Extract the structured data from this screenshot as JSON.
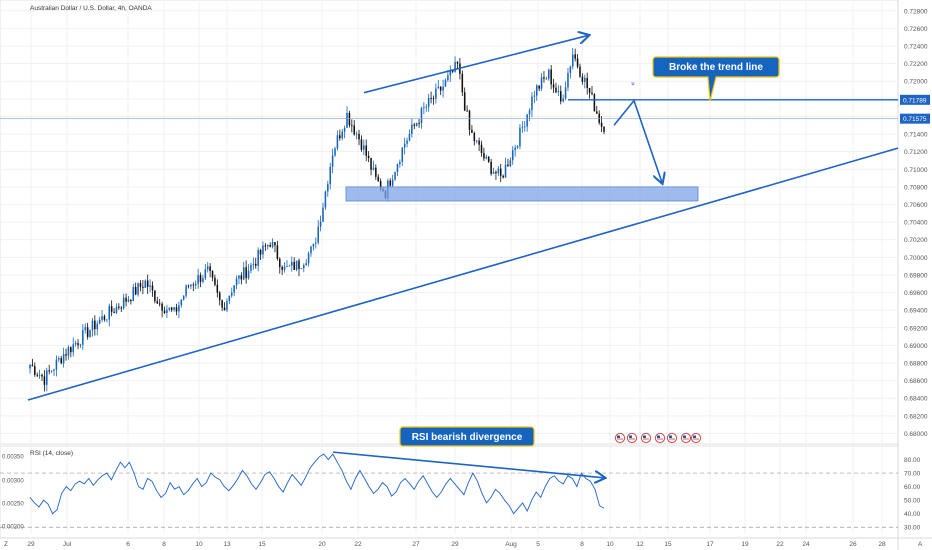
{
  "header": {
    "title": "Australian Dollar / U.S. Dollar, 4h, OANDA",
    "rsi_label": "RSI (14, close)"
  },
  "colors": {
    "bull": "#1565c0",
    "bear": "#111111",
    "accent": "#1e63c6",
    "zone": "#7fa3e6",
    "callout": "#1565c0",
    "grid": "#f1f1f1",
    "axis_text": "#555555"
  },
  "annotations": {
    "callout_trend": "Broke the trend line",
    "callout_rsi": "RSI bearish divergence"
  },
  "price_labels": {
    "level_tag": "0.71789",
    "last_tag": "0.71575"
  },
  "axis": {
    "zoom_left": "Z",
    "zoom_right": "A"
  },
  "icons": [
    "flag-us-icon",
    "flag-us-icon",
    "flag-us-icon",
    "flag-us-icon",
    "flag-us-icon",
    "flag-us-icon",
    "flag-us-icon"
  ],
  "chart_data": [
    {
      "type": "candlestick",
      "title": "Australian Dollar / U.S. Dollar, 4h, OANDA",
      "ylim": [
        0.6788,
        0.729
      ],
      "y_ticks": [
        "0.72800",
        "0.72600",
        "0.72400",
        "0.72200",
        "0.72000",
        "0.71800",
        "0.71600",
        "0.71400",
        "0.71200",
        "0.71000",
        "0.70800",
        "0.70600",
        "0.70400",
        "0.70200",
        "0.70000",
        "0.69800",
        "0.69600",
        "0.69400",
        "0.69200",
        "0.69000",
        "0.68800",
        "0.68600",
        "0.68400",
        "0.68200",
        "0.68000"
      ],
      "x_ticks": [
        "29",
        "Jul",
        "6",
        "8",
        "10",
        "13",
        "15",
        "20",
        "22",
        "27",
        "29",
        "Aug",
        "5",
        "8",
        "10",
        "12",
        "15",
        "17",
        "19",
        "22",
        "24",
        "26",
        "28"
      ],
      "waypoints": [
        {
          "i": 0,
          "p": 0.6878
        },
        {
          "i": 6,
          "p": 0.6862
        },
        {
          "i": 14,
          "p": 0.689
        },
        {
          "i": 28,
          "p": 0.6926
        },
        {
          "i": 40,
          "p": 0.6952
        },
        {
          "i": 48,
          "p": 0.6972
        },
        {
          "i": 54,
          "p": 0.6948
        },
        {
          "i": 60,
          "p": 0.6936
        },
        {
          "i": 66,
          "p": 0.6968
        },
        {
          "i": 74,
          "p": 0.6984
        },
        {
          "i": 80,
          "p": 0.6942
        },
        {
          "i": 85,
          "p": 0.697
        },
        {
          "i": 92,
          "p": 0.699
        },
        {
          "i": 100,
          "p": 0.7018
        },
        {
          "i": 106,
          "p": 0.6986
        },
        {
          "i": 112,
          "p": 0.6992
        },
        {
          "i": 118,
          "p": 0.701
        },
        {
          "i": 122,
          "p": 0.706
        },
        {
          "i": 126,
          "p": 0.712
        },
        {
          "i": 132,
          "p": 0.7162
        },
        {
          "i": 138,
          "p": 0.713
        },
        {
          "i": 144,
          "p": 0.7088
        },
        {
          "i": 148,
          "p": 0.7074
        },
        {
          "i": 156,
          "p": 0.713
        },
        {
          "i": 164,
          "p": 0.7168
        },
        {
          "i": 172,
          "p": 0.7194
        },
        {
          "i": 178,
          "p": 0.7218
        },
        {
          "i": 183,
          "p": 0.7144
        },
        {
          "i": 190,
          "p": 0.7108
        },
        {
          "i": 196,
          "p": 0.709
        },
        {
          "i": 204,
          "p": 0.714
        },
        {
          "i": 210,
          "p": 0.7188
        },
        {
          "i": 216,
          "p": 0.7208
        },
        {
          "i": 221,
          "p": 0.7176
        },
        {
          "i": 226,
          "p": 0.7232
        },
        {
          "i": 231,
          "p": 0.72
        },
        {
          "i": 235,
          "p": 0.7172
        },
        {
          "i": 238,
          "p": 0.715
        }
      ],
      "horizontal_level": 0.71789,
      "last_price": 0.71575,
      "support_zone": [
        0.7064,
        0.708
      ],
      "trendlines": [
        {
          "from": [
            "29",
            0.6838
          ],
          "to": [
            "beyond 28",
            0.7124
          ],
          "label": "rising trend line"
        },
        {
          "from": [
            "22",
            0.7187
          ],
          "to": [
            "8",
            0.7252
          ],
          "label": "upper trend line"
        }
      ],
      "projection": [
        [
          "10",
          0.715
        ],
        [
          "12",
          0.7178
        ],
        [
          "15",
          0.7085
        ]
      ]
    },
    {
      "type": "line",
      "title": "RSI (14, close)",
      "ylim": [
        25,
        90
      ],
      "y_ticks_right": [
        "80.00",
        "70.00",
        "60.00",
        "50.00",
        "40.00",
        "30.00"
      ],
      "y_ticks_left": [
        "0.00350",
        "0.00300",
        "0.00250",
        "0.00200"
      ],
      "bands": [
        70,
        30
      ],
      "series": [
        {
          "values": [
            52,
            48,
            45,
            50,
            47,
            40,
            43,
            55,
            60,
            57,
            62,
            64,
            62,
            66,
            61,
            65,
            68,
            70,
            65,
            72,
            78,
            74,
            78,
            70,
            60,
            58,
            66,
            64,
            57,
            52,
            55,
            63,
            58,
            60,
            54,
            57,
            62,
            66,
            60,
            63,
            70,
            67,
            65,
            60,
            57,
            61,
            66,
            72,
            68,
            62,
            58,
            63,
            69,
            71,
            66,
            60,
            56,
            63,
            69,
            65,
            61,
            67,
            74,
            78,
            82,
            84,
            80,
            84,
            78,
            72,
            64,
            58,
            66,
            72,
            66,
            60,
            55,
            58,
            63,
            60,
            53,
            56,
            63,
            66,
            62,
            58,
            64,
            68,
            62,
            56,
            52,
            56,
            62,
            66,
            62,
            58,
            54,
            63,
            70,
            64,
            55,
            48,
            52,
            58,
            55,
            50,
            46,
            40,
            44,
            48,
            42,
            50,
            56,
            52,
            60,
            66,
            68,
            64,
            62,
            68,
            66,
            60,
            70,
            66,
            64,
            58,
            46,
            44
          ]
        }
      ],
      "divergence_line": [
        [
          "20",
          84
        ],
        [
          "10",
          68
        ]
      ]
    }
  ]
}
